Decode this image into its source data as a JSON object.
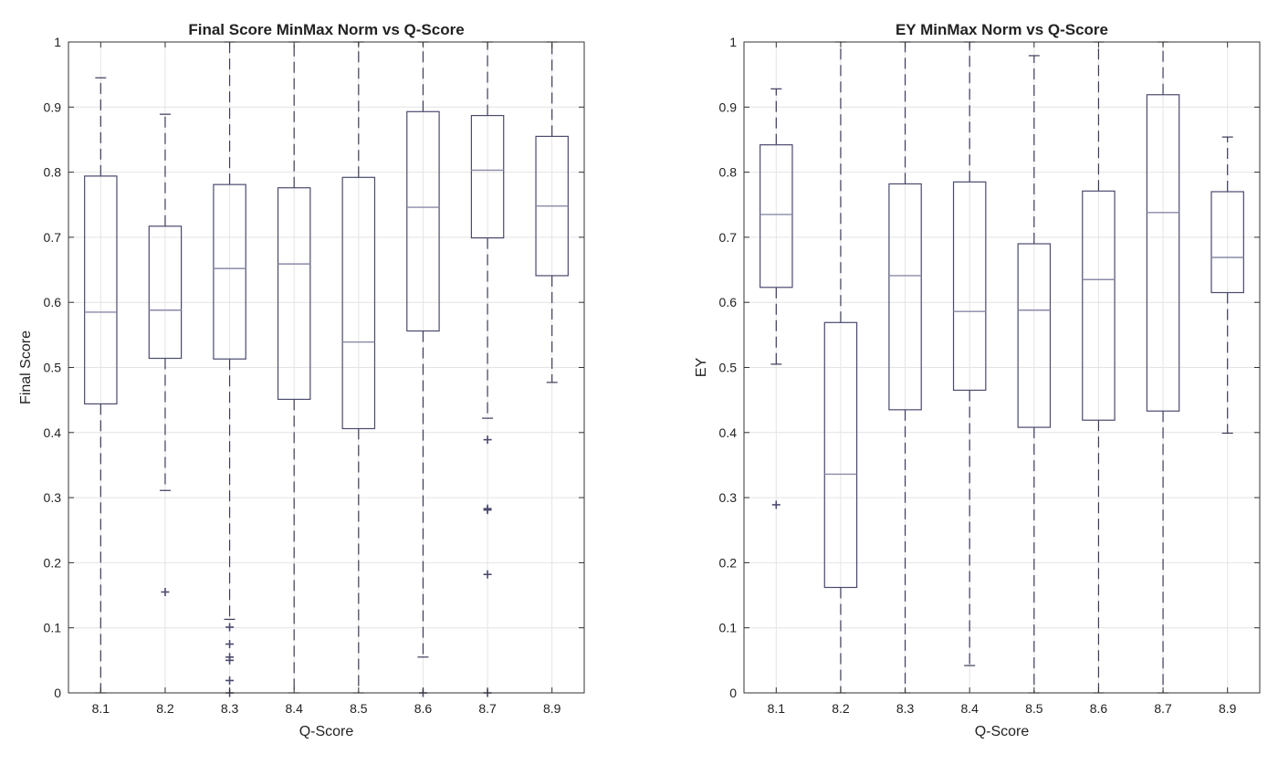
{
  "colors": {
    "box": "#4a4a6e",
    "whisker": "#3b3b5a",
    "median": "#8a8aa8",
    "grid": "#e4e4e4",
    "axis": "#333333"
  },
  "chart_data": [
    {
      "type": "box",
      "title": "Final Score  MinMax Norm vs Q-Score",
      "xlabel": "Q-Score",
      "ylabel": "Final Score",
      "ylim": [
        0,
        1
      ],
      "yticks": [
        0,
        0.1,
        0.2,
        0.3,
        0.4,
        0.5,
        0.6,
        0.7,
        0.8,
        0.9,
        1
      ],
      "ytick_labels": [
        "0",
        "0.1",
        "0.2",
        "0.3",
        "0.4",
        "0.5",
        "0.6",
        "0.7",
        "0.8",
        "0.9",
        "1"
      ],
      "grid": true,
      "categories": [
        "8.1",
        "8.2",
        "8.3",
        "8.4",
        "8.5",
        "8.6",
        "8.7",
        "8.9"
      ],
      "boxes": [
        {
          "whisker_low": 0.0,
          "q1": 0.444,
          "median": 0.585,
          "q3": 0.794,
          "whisker_high": 0.945,
          "outliers": []
        },
        {
          "whisker_low": 0.311,
          "q1": 0.514,
          "median": 0.588,
          "q3": 0.717,
          "whisker_high": 0.889,
          "outliers": [
            0.155
          ]
        },
        {
          "whisker_low": 0.113,
          "q1": 0.513,
          "median": 0.652,
          "q3": 0.781,
          "whisker_high": 1.0,
          "outliers": [
            0.101,
            0.075,
            0.055,
            0.05,
            0.019,
            0.0
          ]
        },
        {
          "whisker_low": 0.0,
          "q1": 0.451,
          "median": 0.659,
          "q3": 0.776,
          "whisker_high": 1.0,
          "outliers": []
        },
        {
          "whisker_low": 0.0,
          "q1": 0.406,
          "median": 0.539,
          "q3": 0.792,
          "whisker_high": 1.0,
          "outliers": []
        },
        {
          "whisker_low": 0.055,
          "q1": 0.556,
          "median": 0.746,
          "q3": 0.893,
          "whisker_high": 1.0,
          "outliers": [
            0.0
          ]
        },
        {
          "whisker_low": 0.422,
          "q1": 0.699,
          "median": 0.803,
          "q3": 0.887,
          "whisker_high": 1.0,
          "outliers": [
            0.389,
            0.283,
            0.281,
            0.182,
            0.0
          ]
        },
        {
          "whisker_low": 0.477,
          "q1": 0.641,
          "median": 0.748,
          "q3": 0.855,
          "whisker_high": 1.0,
          "outliers": []
        }
      ]
    },
    {
      "type": "box",
      "title": "EY  MinMax Norm vs Q-Score",
      "xlabel": "Q-Score",
      "ylabel": "EY",
      "ylim": [
        0,
        1
      ],
      "yticks": [
        0,
        0.1,
        0.2,
        0.3,
        0.4,
        0.5,
        0.6,
        0.7,
        0.8,
        0.9,
        1
      ],
      "ytick_labels": [
        "0",
        "0.1",
        "0.2",
        "0.3",
        "0.4",
        "0.5",
        "0.6",
        "0.7",
        "0.8",
        "0.9",
        "1"
      ],
      "grid": true,
      "categories": [
        "8.1",
        "8.2",
        "8.3",
        "8.4",
        "8.5",
        "8.6",
        "8.7",
        "8.9"
      ],
      "boxes": [
        {
          "whisker_low": 0.505,
          "q1": 0.623,
          "median": 0.735,
          "q3": 0.842,
          "whisker_high": 0.928,
          "outliers": [
            0.289
          ]
        },
        {
          "whisker_low": 0.0,
          "q1": 0.162,
          "median": 0.336,
          "q3": 0.569,
          "whisker_high": 1.0,
          "outliers": []
        },
        {
          "whisker_low": 0.0,
          "q1": 0.435,
          "median": 0.641,
          "q3": 0.782,
          "whisker_high": 1.0,
          "outliers": []
        },
        {
          "whisker_low": 0.042,
          "q1": 0.465,
          "median": 0.586,
          "q3": 0.785,
          "whisker_high": 1.0,
          "outliers": []
        },
        {
          "whisker_low": 0.0,
          "q1": 0.408,
          "median": 0.588,
          "q3": 0.69,
          "whisker_high": 0.979,
          "outliers": []
        },
        {
          "whisker_low": 0.0,
          "q1": 0.419,
          "median": 0.635,
          "q3": 0.771,
          "whisker_high": 1.0,
          "outliers": []
        },
        {
          "whisker_low": 0.0,
          "q1": 0.433,
          "median": 0.738,
          "q3": 0.919,
          "whisker_high": 1.0,
          "outliers": []
        },
        {
          "whisker_low": 0.399,
          "q1": 0.615,
          "median": 0.669,
          "q3": 0.77,
          "whisker_high": 0.854,
          "outliers": []
        }
      ]
    }
  ]
}
